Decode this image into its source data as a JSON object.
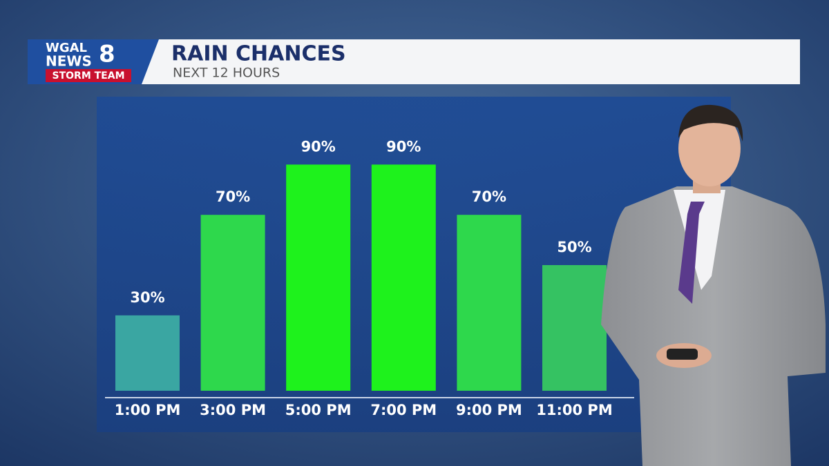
{
  "logo": {
    "line1": "WGAL",
    "line2": "NEWS",
    "number": "8",
    "badge": "STORM TEAM"
  },
  "chart_data": {
    "type": "bar",
    "title": "RAIN CHANCES",
    "subtitle": "NEXT 12 HOURS",
    "categories": [
      "1:00 PM",
      "3:00 PM",
      "5:00 PM",
      "7:00 PM",
      "9:00 PM",
      "11:00 PM"
    ],
    "values": [
      30,
      70,
      90,
      90,
      70,
      50
    ],
    "value_labels": [
      "30%",
      "70%",
      "90%",
      "90%",
      "70%",
      "50%"
    ],
    "colors": [
      "#3aa6a2",
      "#2ed84c",
      "#1ef21c",
      "#1ef21c",
      "#2ed84c",
      "#35c262"
    ],
    "ylim": [
      0,
      100
    ]
  }
}
